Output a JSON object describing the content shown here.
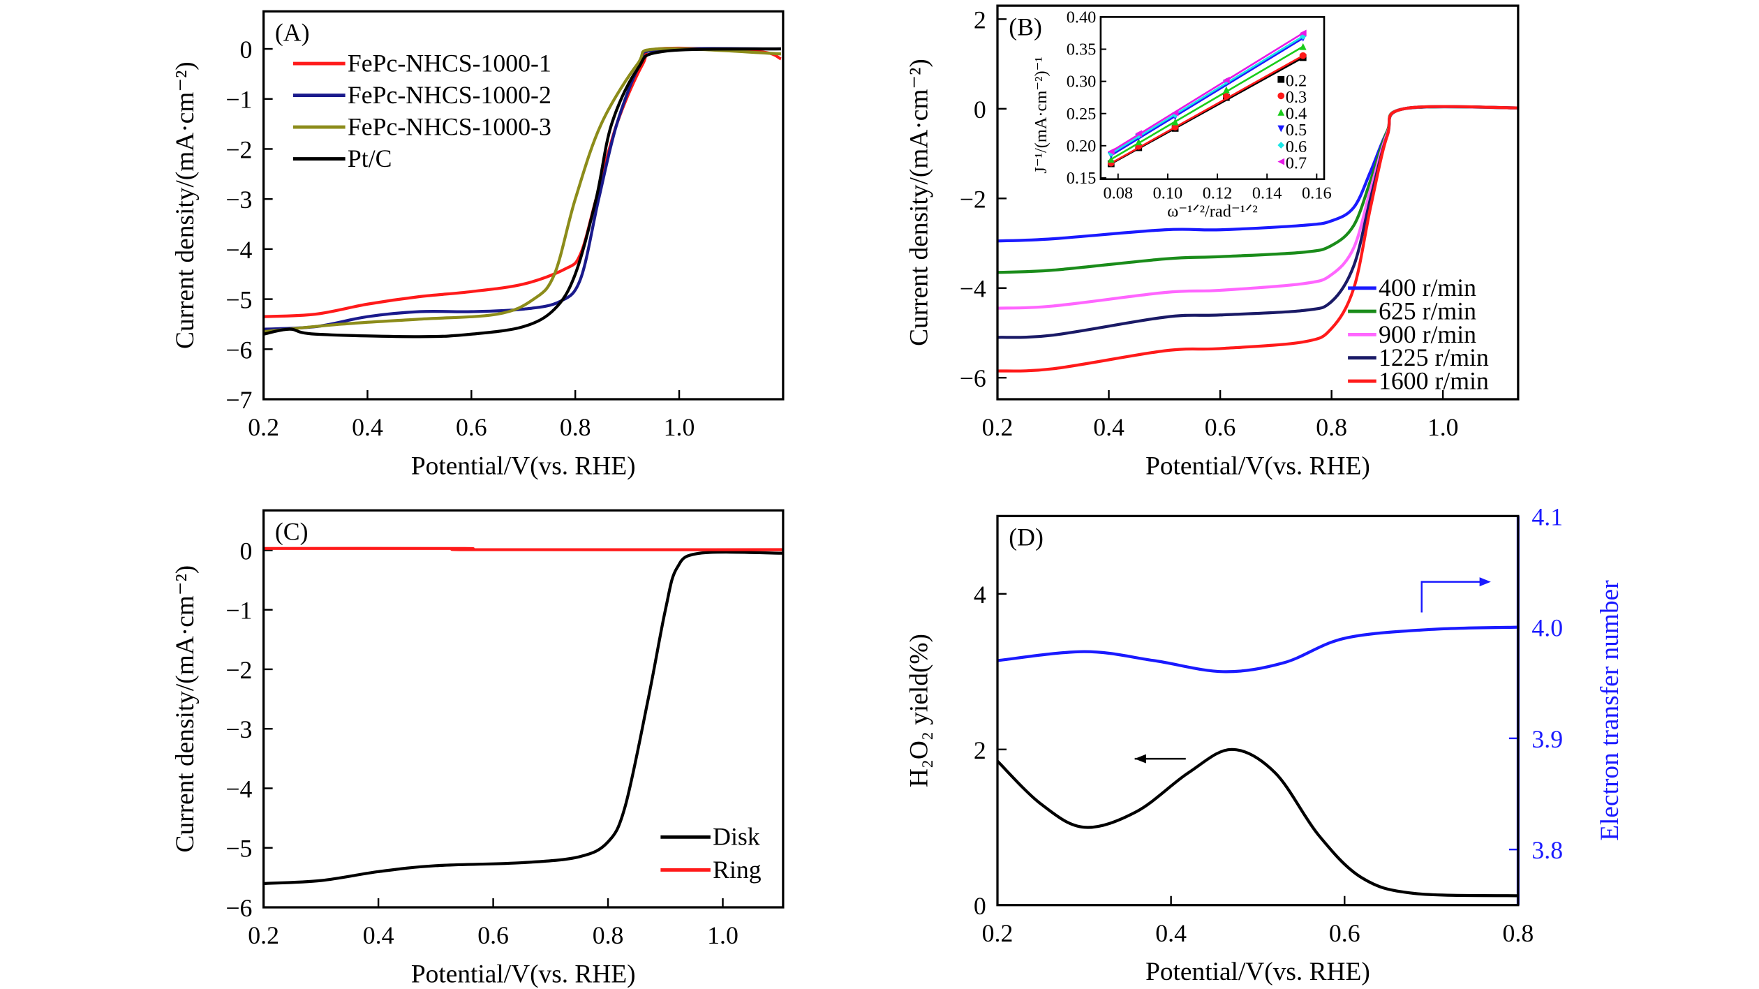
{
  "chart_data": [
    {
      "panel": "(A)",
      "type": "line",
      "xlabel": "Potential/V(vs. RHE)",
      "ylabel": "Current density/(mA·cm⁻²)",
      "xlim": [
        0.2,
        1.2
      ],
      "ylim": [
        -7,
        0.75
      ],
      "xticks": [
        0.2,
        0.4,
        0.6,
        0.8,
        1.0
      ],
      "yticks": [
        0,
        -1,
        -2,
        -3,
        -4,
        -5,
        -6,
        -7
      ],
      "legend": "top-left",
      "series": [
        {
          "name": "FePc-NHCS-1000-1",
          "color": "#ff1a1a",
          "x": [
            0.2,
            0.3,
            0.4,
            0.5,
            0.6,
            0.7,
            0.78,
            0.81,
            0.84,
            0.88,
            0.93,
            0.96,
            1.15,
            1.196
          ],
          "y": [
            -5.35,
            -5.3,
            -5.1,
            -4.95,
            -4.85,
            -4.7,
            -4.4,
            -4.1,
            -3.0,
            -1.5,
            -0.3,
            0,
            -0.05,
            -0.2
          ]
        },
        {
          "name": "FePc-NHCS-1000-2",
          "color": "#1a1a8c",
          "x": [
            0.2,
            0.3,
            0.4,
            0.5,
            0.6,
            0.7,
            0.77,
            0.81,
            0.845,
            0.88,
            0.925,
            0.96,
            1.196
          ],
          "y": [
            -5.6,
            -5.55,
            -5.35,
            -5.25,
            -5.25,
            -5.2,
            -5.05,
            -4.6,
            -3.0,
            -1.5,
            -0.3,
            -0.02,
            0
          ]
        },
        {
          "name": "FePc-NHCS-1000-3",
          "color": "#8c8c1a",
          "x": [
            0.2,
            0.35,
            0.5,
            0.65,
            0.72,
            0.76,
            0.8,
            0.85,
            0.92,
            0.96,
            1.196
          ],
          "y": [
            -5.65,
            -5.5,
            -5.4,
            -5.3,
            -5.0,
            -4.5,
            -3.0,
            -1.5,
            -0.3,
            0,
            -0.1
          ]
        },
        {
          "name": "Pt/C",
          "color": "#000000",
          "x": [
            0.2,
            0.25,
            0.3,
            0.5,
            0.6,
            0.7,
            0.76,
            0.8,
            0.84,
            0.87,
            0.92,
            0.97,
            1.196
          ],
          "y": [
            -5.7,
            -5.6,
            -5.7,
            -5.75,
            -5.7,
            -5.55,
            -5.2,
            -4.5,
            -3.0,
            -1.5,
            -0.4,
            -0.05,
            0
          ]
        }
      ]
    },
    {
      "panel": "(B)",
      "type": "line",
      "xlabel": "Potential/V(vs. RHE)",
      "ylabel": "Current density/(mA·cm⁻²)",
      "xlim": [
        0.2,
        1.135
      ],
      "ylim": [
        -6.48,
        2.3
      ],
      "xticks": [
        0.2,
        0.4,
        0.6,
        0.8,
        1.0
      ],
      "yticks": [
        2,
        0,
        -2,
        -4,
        -6
      ],
      "legend": "bottom-right",
      "series": [
        {
          "name": "400 r/min",
          "color": "#1a1aff",
          "x": [
            0.2,
            0.3,
            0.5,
            0.6,
            0.75,
            0.8,
            0.84,
            0.87,
            0.9,
            0.93,
            1.135
          ],
          "y": [
            -2.95,
            -2.9,
            -2.7,
            -2.7,
            -2.6,
            -2.5,
            -2.2,
            -1.4,
            -0.5,
            0,
            0.02
          ]
        },
        {
          "name": "625 r/min",
          "color": "#1a8c1a",
          "x": [
            0.2,
            0.3,
            0.5,
            0.6,
            0.75,
            0.8,
            0.84,
            0.87,
            0.9,
            0.93,
            1.135
          ],
          "y": [
            -3.65,
            -3.6,
            -3.35,
            -3.3,
            -3.2,
            -3.05,
            -2.6,
            -1.6,
            -0.5,
            0,
            0.02
          ]
        },
        {
          "name": "900 r/min",
          "color": "#ff66ff",
          "x": [
            0.2,
            0.3,
            0.5,
            0.6,
            0.75,
            0.8,
            0.84,
            0.87,
            0.9,
            0.93,
            1.135
          ],
          "y": [
            -4.45,
            -4.4,
            -4.1,
            -4.05,
            -3.9,
            -3.7,
            -3.1,
            -1.8,
            -0.55,
            0,
            0.02
          ]
        },
        {
          "name": "1225 r/min",
          "color": "#1a1a66",
          "x": [
            0.2,
            0.3,
            0.5,
            0.6,
            0.75,
            0.8,
            0.84,
            0.87,
            0.9,
            0.93,
            1.135
          ],
          "y": [
            -5.1,
            -5.05,
            -4.65,
            -4.6,
            -4.5,
            -4.3,
            -3.5,
            -2.0,
            -0.6,
            0,
            0.02
          ]
        },
        {
          "name": "1600 r/min",
          "color": "#ff1a1a",
          "x": [
            0.2,
            0.3,
            0.5,
            0.6,
            0.75,
            0.8,
            0.84,
            0.87,
            0.9,
            0.93,
            1.135
          ],
          "y": [
            -5.85,
            -5.8,
            -5.4,
            -5.35,
            -5.2,
            -4.9,
            -4.0,
            -2.2,
            -0.6,
            0,
            0.02
          ]
        }
      ],
      "inset": {
        "type": "scatter",
        "xlabel": "ω⁻¹ᐟ²/rad⁻¹ᐟ²",
        "ylabel": "J⁻¹/(mA·cm⁻²)⁻¹",
        "xlim": [
          0.073,
          0.163
        ],
        "ylim": [
          0.148,
          0.4
        ],
        "xticks": [
          0.08,
          0.1,
          0.12,
          0.14,
          0.16
        ],
        "yticks": [
          0.15,
          0.2,
          0.25,
          0.3,
          0.35,
          0.4
        ],
        "legend": "right",
        "x": [
          0.0772,
          0.0883,
          0.103,
          0.1236,
          0.1545
        ],
        "series": [
          {
            "name": "0.2",
            "color": "#000000",
            "marker": "square",
            "y": [
              0.172,
              0.197,
              0.227,
              0.275,
              0.337
            ]
          },
          {
            "name": "0.3",
            "color": "#ff1a1a",
            "marker": "circle",
            "y": [
              0.173,
              0.199,
              0.229,
              0.277,
              0.34
            ]
          },
          {
            "name": "0.4",
            "color": "#1acc1a",
            "marker": "triangle-up",
            "y": [
              0.179,
              0.206,
              0.237,
              0.287,
              0.354
            ]
          },
          {
            "name": "0.5",
            "color": "#1a1aff",
            "marker": "triangle-down",
            "y": [
              0.185,
              0.213,
              0.245,
              0.297,
              0.367
            ]
          },
          {
            "name": "0.6",
            "color": "#1ae6e6",
            "marker": "diamond",
            "y": [
              0.188,
              0.216,
              0.248,
              0.3,
              0.37
            ]
          },
          {
            "name": "0.7",
            "color": "#e61ae6",
            "marker": "triangle-left",
            "y": [
              0.191,
              0.219,
              0.251,
              0.302,
              0.375
            ]
          }
        ]
      }
    },
    {
      "panel": "(C)",
      "type": "line",
      "xlabel": "Potential/V(vs. RHE)",
      "ylabel": "Current density/(mA·cm⁻²)",
      "xlim": [
        0.2,
        1.105
      ],
      "ylim": [
        -6,
        0.67
      ],
      "xticks": [
        0.2,
        0.4,
        0.6,
        0.8,
        1.0
      ],
      "yticks": [
        0,
        -1,
        -2,
        -3,
        -4,
        -5,
        -6
      ],
      "legend": "bottom-right",
      "series": [
        {
          "name": "Disk",
          "color": "#000000",
          "x": [
            0.2,
            0.3,
            0.4,
            0.5,
            0.65,
            0.75,
            0.8,
            0.83,
            0.87,
            0.9,
            0.92,
            0.96,
            1.105
          ],
          "y": [
            -5.6,
            -5.55,
            -5.4,
            -5.3,
            -5.25,
            -5.15,
            -4.9,
            -4.3,
            -2.5,
            -1.0,
            -0.3,
            -0.05,
            -0.05
          ]
        },
        {
          "name": "Ring",
          "color": "#ff1a1a",
          "x": [
            0.2,
            0.55,
            0.56,
            1.105
          ],
          "y": [
            0.03,
            0.03,
            0.01,
            0.01
          ]
        }
      ]
    },
    {
      "panel": "(D)",
      "type": "line",
      "xlabel": "Potential/V(vs. RHE)",
      "ylabel": "H₂O₂ yield(%)",
      "y2label": "Electron transfer number",
      "xlim": [
        0.2,
        0.8
      ],
      "ylim": [
        0,
        5.0
      ],
      "y2lim": [
        3.75,
        4.1
      ],
      "xticks": [
        0.2,
        0.4,
        0.6,
        0.8
      ],
      "yticks": [
        0,
        2,
        4
      ],
      "y2ticks": [
        3.8,
        3.9,
        4.0,
        4.1
      ],
      "y2color": "#1a1aff",
      "series": [
        {
          "axis": "left",
          "color": "#000000",
          "x": [
            0.2,
            0.25,
            0.3,
            0.36,
            0.42,
            0.47,
            0.52,
            0.57,
            0.62,
            0.68,
            0.8
          ],
          "y": [
            1.85,
            1.3,
            1.0,
            1.2,
            1.7,
            2.0,
            1.7,
            0.9,
            0.35,
            0.15,
            0.12
          ]
        },
        {
          "axis": "right",
          "color": "#1a1aff",
          "x": [
            0.2,
            0.3,
            0.38,
            0.46,
            0.53,
            0.6,
            0.7,
            0.8
          ],
          "y": [
            3.97,
            3.978,
            3.97,
            3.96,
            3.968,
            3.99,
            3.998,
            4.0
          ]
        }
      ]
    }
  ]
}
